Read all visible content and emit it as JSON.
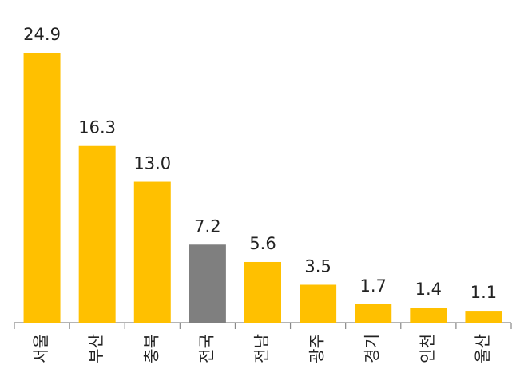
{
  "chart_data": {
    "type": "bar",
    "categories": [
      "서울",
      "부산",
      "충북",
      "전국",
      "전남",
      "광주",
      "경기",
      "인천",
      "울산"
    ],
    "values": [
      24.9,
      16.3,
      13.0,
      7.2,
      5.6,
      3.5,
      1.7,
      1.4,
      1.1
    ],
    "value_labels": [
      "24.9",
      "16.3",
      "13.0",
      "7.2",
      "5.6",
      "3.5",
      "1.7",
      "1.4",
      "1.1"
    ],
    "colors": [
      "#FFC000",
      "#FFC000",
      "#FFC000",
      "#7F7F7F",
      "#FFC000",
      "#FFC000",
      "#FFC000",
      "#FFC000",
      "#FFC000"
    ]
  }
}
